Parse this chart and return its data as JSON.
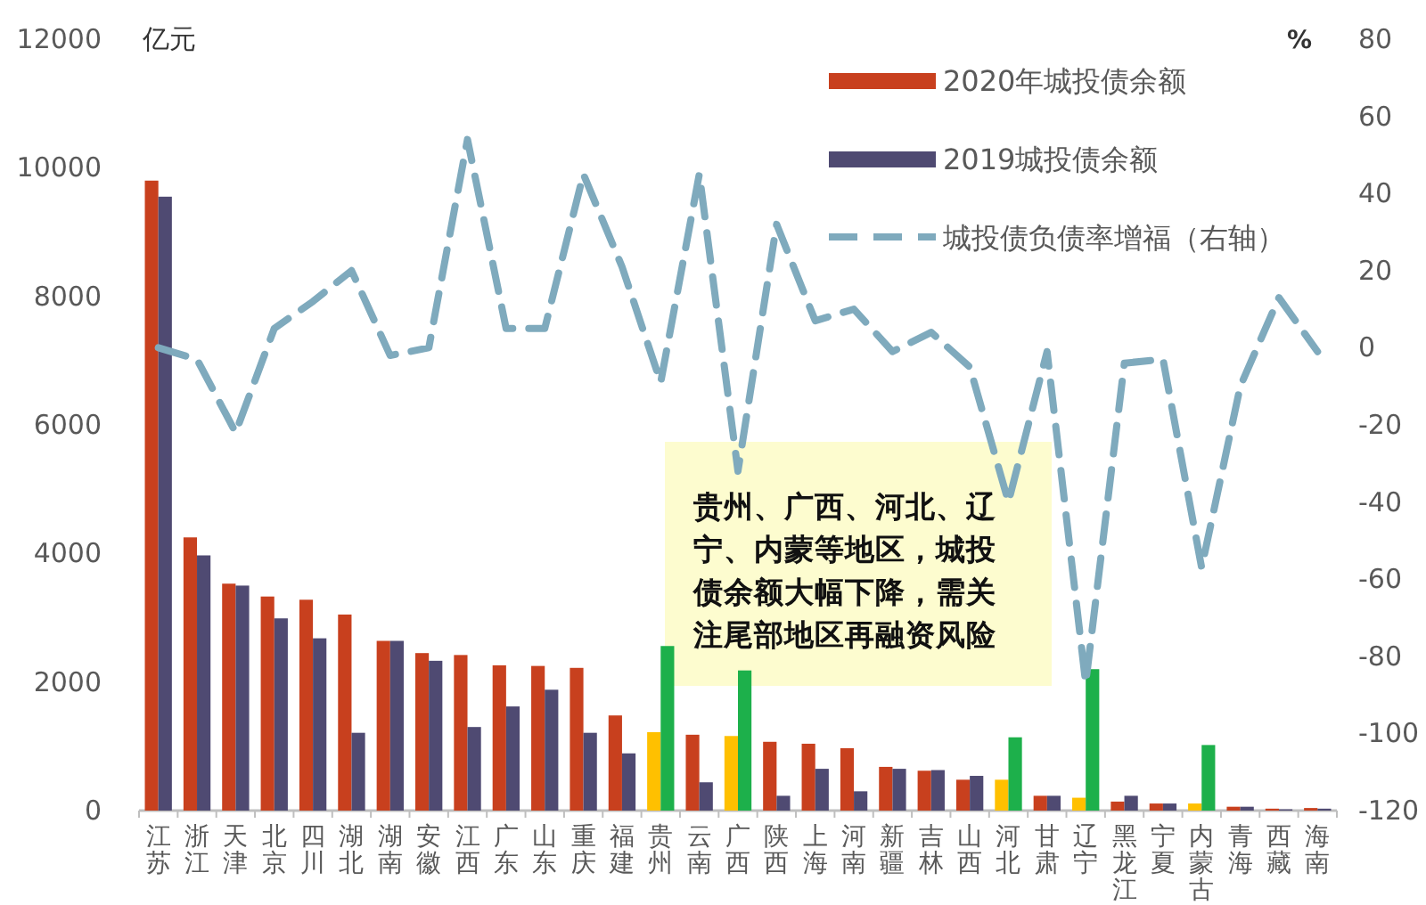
{
  "chart_data": {
    "type": "bar",
    "categories": [
      "江苏",
      "浙江",
      "天津",
      "北京",
      "四川",
      "湖北",
      "湖南",
      "安徽",
      "江西",
      "广东",
      "山东",
      "重庆",
      "福建",
      "贵州",
      "云南",
      "广西",
      "陕西",
      "上海",
      "河南",
      "新疆",
      "吉林",
      "山西",
      "河北",
      "甘肃",
      "辽宁",
      "黑龙江",
      "宁夏",
      "内蒙古",
      "青海",
      "西藏",
      "海南"
    ],
    "series": [
      {
        "name": "2020年城投债余额",
        "color": "#c8401e",
        "colors": [
          "#c8401e",
          "#c8401e",
          "#c8401e",
          "#c8401e",
          "#c8401e",
          "#c8401e",
          "#c8401e",
          "#c8401e",
          "#c8401e",
          "#c8401e",
          "#c8401e",
          "#c8401e",
          "#c8401e",
          "#ffc000",
          "#c8401e",
          "#ffc000",
          "#c8401e",
          "#c8401e",
          "#c8401e",
          "#c8401e",
          "#c8401e",
          "#c8401e",
          "#ffc000",
          "#c8401e",
          "#ffc000",
          "#c8401e",
          "#c8401e",
          "#ffc000",
          "#c8401e",
          "#c8401e",
          "#c8401e"
        ],
        "values": [
          9800,
          4250,
          3530,
          3330,
          3280,
          3050,
          2640,
          2450,
          2420,
          2260,
          2250,
          2220,
          1480,
          1220,
          1180,
          1160,
          1070,
          1040,
          970,
          680,
          620,
          480,
          480,
          230,
          200,
          140,
          110,
          110,
          60,
          30,
          40
        ]
      },
      {
        "name": "2019城投债余额",
        "color": "#4f4a72",
        "colors": [
          "#4f4a72",
          "#4f4a72",
          "#4f4a72",
          "#4f4a72",
          "#4f4a72",
          "#4f4a72",
          "#4f4a72",
          "#4f4a72",
          "#4f4a72",
          "#4f4a72",
          "#4f4a72",
          "#4f4a72",
          "#4f4a72",
          "#1db04b",
          "#4f4a72",
          "#1db04b",
          "#4f4a72",
          "#4f4a72",
          "#4f4a72",
          "#4f4a72",
          "#4f4a72",
          "#4f4a72",
          "#1db04b",
          "#4f4a72",
          "#1db04b",
          "#4f4a72",
          "#4f4a72",
          "#1db04b",
          "#4f4a72",
          "#4f4a72",
          "#4f4a72"
        ],
        "values": [
          9550,
          3970,
          3500,
          2990,
          2680,
          1210,
          2640,
          2330,
          1300,
          1620,
          1880,
          1210,
          890,
          2560,
          440,
          2180,
          230,
          650,
          300,
          650,
          630,
          540,
          1140,
          230,
          2200,
          230,
          110,
          1020,
          60,
          20,
          30
        ]
      },
      {
        "name": "城投债负债率增福（右轴）",
        "type": "line",
        "axis": "y2",
        "color": "#7faabd",
        "line_style": "dashed",
        "values": [
          0,
          -3,
          -22,
          5,
          12,
          20,
          -2,
          0,
          54,
          5,
          5,
          45,
          21,
          -9,
          45,
          -32,
          32,
          7,
          10,
          -1,
          4,
          -5,
          -40,
          -1,
          -87,
          -4,
          -3,
          -57,
          -10,
          13,
          -1
        ]
      }
    ],
    "ylabel": "亿元",
    "y2label": "%",
    "ylim": [
      0,
      12000
    ],
    "yticks": [
      0,
      2000,
      4000,
      6000,
      8000,
      10000,
      12000
    ],
    "y2lim": [
      -120,
      80
    ],
    "y2ticks": [
      -120,
      -100,
      -80,
      -60,
      -40,
      -20,
      0,
      20,
      40,
      60,
      80
    ],
    "legend": "top right",
    "annotations": [
      "贵州、广西、河北、辽宁、内蒙等地区，城投债余额大幅下降，需关注尾部地区再融资风险"
    ]
  }
}
